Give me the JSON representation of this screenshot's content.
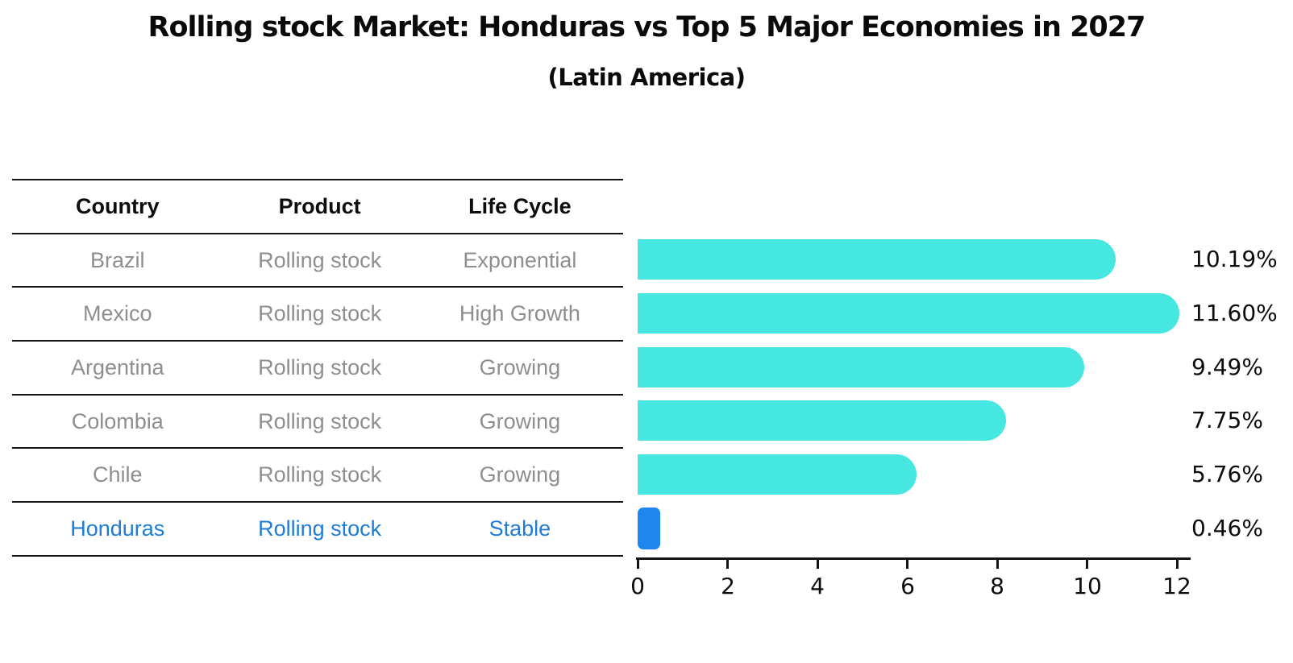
{
  "title": "Rolling stock Market: Honduras vs Top 5 Major Economies in 2027",
  "subtitle": "(Latin America)",
  "table": {
    "headers": [
      "Country",
      "Product",
      "Life Cycle"
    ],
    "rows": [
      {
        "country": "Brazil",
        "product": "Rolling stock",
        "life_cycle": "Exponential",
        "highlight": false
      },
      {
        "country": "Mexico",
        "product": "Rolling stock",
        "life_cycle": "High Growth",
        "highlight": false
      },
      {
        "country": "Argentina",
        "product": "Rolling stock",
        "life_cycle": "Growing",
        "highlight": false
      },
      {
        "country": "Colombia",
        "product": "Rolling stock",
        "life_cycle": "Growing",
        "highlight": false
      },
      {
        "country": "Chile",
        "product": "Rolling stock",
        "life_cycle": "Growing",
        "highlight": false
      },
      {
        "country": "Honduras",
        "product": "Rolling stock",
        "life_cycle": "Stable",
        "highlight": true
      }
    ]
  },
  "chart_data": {
    "type": "bar",
    "orientation": "horizontal",
    "categories": [
      "Brazil",
      "Mexico",
      "Argentina",
      "Colombia",
      "Chile",
      "Honduras"
    ],
    "values": [
      10.19,
      11.6,
      9.49,
      7.75,
      5.76,
      0.46
    ],
    "value_labels": [
      "10.19%",
      "11.60%",
      "9.49%",
      "7.75%",
      "5.76%",
      "0.46%"
    ],
    "xlim": [
      0,
      12
    ],
    "xticks": [
      0,
      2,
      4,
      6,
      8,
      10,
      12
    ],
    "grid": false,
    "legend": null,
    "highlight_index": 5,
    "bar_color": "#45E7E0",
    "highlight_bar_color": "#1E86EC"
  },
  "colors": {
    "bar_cyan": "#45E7E0",
    "bar_blue": "#1E86EC",
    "highlight_text": "#1F7CD6",
    "row_text": "#8E8E8E",
    "header_text": "#0D0D0D",
    "axis_line": "#141414"
  }
}
